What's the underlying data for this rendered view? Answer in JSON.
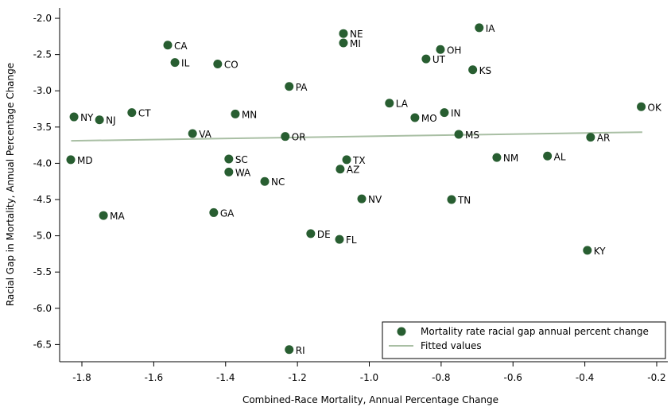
{
  "chart_data": {
    "type": "scatter",
    "xlabel": "Combined-Race Mortality, Annual Percentage Change",
    "ylabel": "Racial Gap in Mortality, Annual Percentage Change",
    "xlim": [
      -1.862,
      -0.169
    ],
    "ylim": [
      -6.737,
      -1.857
    ],
    "xticks": [
      -1.8,
      -1.6,
      -1.4,
      -1.2,
      -1.0,
      -0.8,
      -0.6,
      -0.4,
      -0.2
    ],
    "xtick_labels": [
      "-1.8",
      "-1.6",
      "-1.4",
      "-1.2",
      "-1.0",
      "-0.8",
      "-0.6",
      "-0.4",
      "-0.2"
    ],
    "yticks": [
      -2.0,
      -2.5,
      -3.0,
      -3.5,
      -4.0,
      -4.5,
      -5.0,
      -5.5,
      -6.0,
      -6.5
    ],
    "ytick_labels": [
      "-2.0",
      "-2.5",
      "-3.0",
      "-3.5",
      "-4.0",
      "-4.5",
      "-5.0",
      "-5.5",
      "-6.0",
      "-6.5"
    ],
    "grid": false,
    "legend_placement": "bottom-right",
    "colors": {
      "points": "#285e31",
      "fit": "#a9bfa4"
    },
    "series": [
      {
        "name": "Mortality rate racial gap annual percent change",
        "points": [
          {
            "label": "CA",
            "x": -1.561,
            "y": -2.37
          },
          {
            "label": "IL",
            "x": -1.541,
            "y": -2.61
          },
          {
            "label": "CO",
            "x": -1.422,
            "y": -2.63
          },
          {
            "label": "NE",
            "x": -1.072,
            "y": -2.21
          },
          {
            "label": "MI",
            "x": -1.072,
            "y": -2.34
          },
          {
            "label": "IA",
            "x": -0.694,
            "y": -2.13
          },
          {
            "label": "OH",
            "x": -0.802,
            "y": -2.43
          },
          {
            "label": "UT",
            "x": -0.842,
            "y": -2.56
          },
          {
            "label": "KS",
            "x": -0.712,
            "y": -2.71
          },
          {
            "label": "PA",
            "x": -1.223,
            "y": -2.94
          },
          {
            "label": "LA",
            "x": -0.944,
            "y": -3.17
          },
          {
            "label": "IN",
            "x": -0.791,
            "y": -3.3
          },
          {
            "label": "MO",
            "x": -0.873,
            "y": -3.37
          },
          {
            "label": "OK",
            "x": -0.243,
            "y": -3.22
          },
          {
            "label": "CT",
            "x": -1.661,
            "y": -3.3
          },
          {
            "label": "NY",
            "x": -1.822,
            "y": -3.36
          },
          {
            "label": "NJ",
            "x": -1.751,
            "y": -3.4
          },
          {
            "label": "MN",
            "x": -1.373,
            "y": -3.32
          },
          {
            "label": "VA",
            "x": -1.492,
            "y": -3.59
          },
          {
            "label": "OR",
            "x": -1.234,
            "y": -3.63
          },
          {
            "label": "MS",
            "x": -0.751,
            "y": -3.6
          },
          {
            "label": "AR",
            "x": -0.384,
            "y": -3.64
          },
          {
            "label": "MD",
            "x": -1.831,
            "y": -3.95
          },
          {
            "label": "SC",
            "x": -1.391,
            "y": -3.94
          },
          {
            "label": "WA",
            "x": -1.391,
            "y": -4.12
          },
          {
            "label": "TX",
            "x": -1.063,
            "y": -3.95
          },
          {
            "label": "AZ",
            "x": -1.081,
            "y": -4.08
          },
          {
            "label": "NM",
            "x": -0.645,
            "y": -3.92
          },
          {
            "label": "AL",
            "x": -0.504,
            "y": -3.9
          },
          {
            "label": "NC",
            "x": -1.291,
            "y": -4.25
          },
          {
            "label": "NV",
            "x": -1.021,
            "y": -4.49
          },
          {
            "label": "TN",
            "x": -0.771,
            "y": -4.5
          },
          {
            "label": "GA",
            "x": -1.433,
            "y": -4.68
          },
          {
            "label": "MA",
            "x": -1.74,
            "y": -4.72
          },
          {
            "label": "DE",
            "x": -1.163,
            "y": -4.97
          },
          {
            "label": "FL",
            "x": -1.083,
            "y": -5.05
          },
          {
            "label": "KY",
            "x": -0.393,
            "y": -5.2
          },
          {
            "label": "RI",
            "x": -1.223,
            "y": -6.57
          }
        ]
      },
      {
        "name": "Fitted values",
        "type": "line",
        "points": [
          {
            "x": -1.83,
            "y": -3.69
          },
          {
            "x": -0.24,
            "y": -3.57
          }
        ]
      }
    ]
  }
}
